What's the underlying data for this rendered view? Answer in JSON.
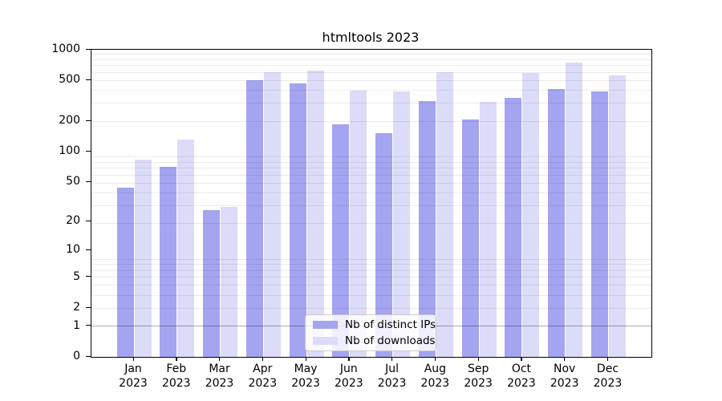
{
  "title": "htmltools 2023",
  "chart_data": {
    "type": "bar",
    "title": "htmltools 2023",
    "categories": [
      "Jan",
      "Feb",
      "Mar",
      "Apr",
      "May",
      "Jun",
      "Jul",
      "Aug",
      "Sep",
      "Oct",
      "Nov",
      "Dec"
    ],
    "category_year": "2023",
    "series": [
      {
        "name": "Nb of distinct IPs",
        "values": [
          44,
          71,
          26,
          500,
          470,
          186,
          152,
          316,
          209,
          337,
          413,
          394
        ]
      },
      {
        "name": "Nb of downloads",
        "values": [
          84,
          131,
          28,
          600,
          628,
          400,
          388,
          604,
          310,
          595,
          750,
          560
        ]
      }
    ],
    "yscale": "log(1+y)",
    "ylim": [
      0,
      1000
    ],
    "y_ticks": [
      0,
      1,
      2,
      5,
      10,
      20,
      50,
      100,
      200,
      500,
      1000
    ],
    "grid": "on",
    "legend_position": "lower center"
  },
  "colors": {
    "bar_ips": "#a4a4f0",
    "bar_downloads": "#dcdcf8",
    "grid_minor": "rgba(0,0,0,0.08)",
    "grid_major": "rgba(0,0,0,0.32)",
    "axis": "#000000",
    "background": "#ffffff",
    "legend_border": "#cccccc"
  }
}
